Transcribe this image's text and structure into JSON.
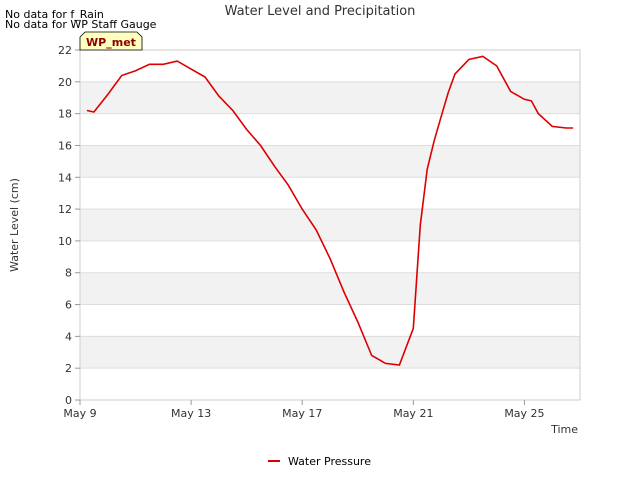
{
  "notes": [
    "No data for f_Rain",
    "No data for WP Staff Gauge"
  ],
  "badge": "WP_met",
  "colors": {
    "series": "#dd0000",
    "band": "#f2f2f2",
    "grid": "#dddddd",
    "badge_bg": "#ffffc0",
    "badge_text": "#8b0000"
  },
  "chart_data": {
    "type": "line",
    "title": "Water Level and Precipitation",
    "xlabel": "Time",
    "ylabel": "Water Level (cm)",
    "ylim": [
      0,
      22
    ],
    "yticks": [
      0,
      2,
      4,
      6,
      8,
      10,
      12,
      14,
      16,
      18,
      20,
      22
    ],
    "xlim": [
      "2024-05-09",
      "2024-05-27"
    ],
    "xticks": [
      {
        "value": "2024-05-09",
        "label": "May 9"
      },
      {
        "value": "2024-05-13",
        "label": "May 13"
      },
      {
        "value": "2024-05-17",
        "label": "May 17"
      },
      {
        "value": "2024-05-21",
        "label": "May 21"
      },
      {
        "value": "2024-05-25",
        "label": "May 25"
      }
    ],
    "grid": true,
    "legend": "bottom",
    "series": [
      {
        "name": "Water Pressure",
        "x": [
          "2024-05-09 06:00",
          "2024-05-09 12:00",
          "2024-05-10 00:00",
          "2024-05-10 12:00",
          "2024-05-11 00:00",
          "2024-05-11 12:00",
          "2024-05-12 00:00",
          "2024-05-12 12:00",
          "2024-05-13 00:00",
          "2024-05-13 12:00",
          "2024-05-14 00:00",
          "2024-05-14 12:00",
          "2024-05-15 00:00",
          "2024-05-15 12:00",
          "2024-05-16 00:00",
          "2024-05-16 12:00",
          "2024-05-17 00:00",
          "2024-05-17 12:00",
          "2024-05-18 00:00",
          "2024-05-18 12:00",
          "2024-05-19 00:00",
          "2024-05-19 12:00",
          "2024-05-20 00:00",
          "2024-05-20 12:00",
          "2024-05-21 00:00",
          "2024-05-21 06:00",
          "2024-05-21 12:00",
          "2024-05-21 18:00",
          "2024-05-22 00:00",
          "2024-05-22 06:00",
          "2024-05-22 12:00",
          "2024-05-23 00:00",
          "2024-05-23 12:00",
          "2024-05-24 00:00",
          "2024-05-24 12:00",
          "2024-05-25 00:00",
          "2024-05-25 06:00",
          "2024-05-25 12:00",
          "2024-05-26 00:00",
          "2024-05-26 12:00",
          "2024-05-26 18:00"
        ],
        "y": [
          18.2,
          18.1,
          19.2,
          20.4,
          20.7,
          21.1,
          21.1,
          21.3,
          20.8,
          20.3,
          19.1,
          18.2,
          17.0,
          16.0,
          14.7,
          13.5,
          12.0,
          10.7,
          8.9,
          6.8,
          4.9,
          2.8,
          2.3,
          2.2,
          4.5,
          11.0,
          14.5,
          16.3,
          17.8,
          19.3,
          20.5,
          21.4,
          21.6,
          21.0,
          19.4,
          18.9,
          18.8,
          18.0,
          17.2,
          17.1,
          17.1
        ]
      }
    ]
  }
}
